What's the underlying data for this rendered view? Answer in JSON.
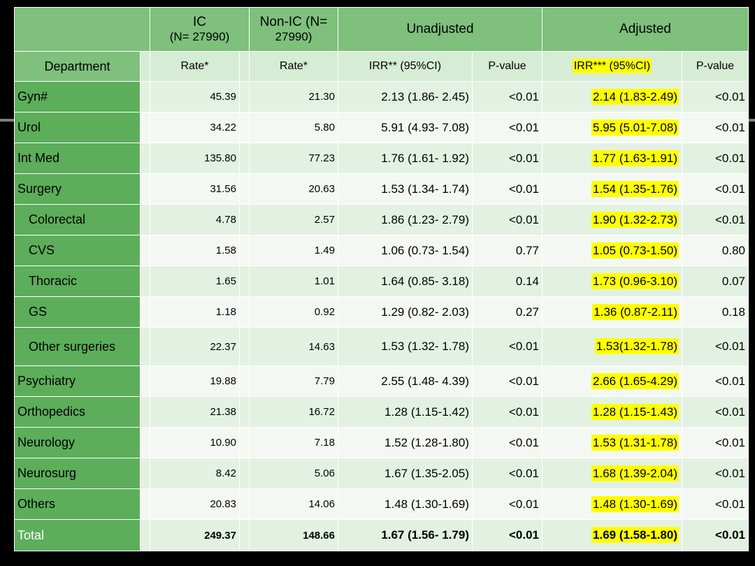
{
  "header": {
    "ic_title": "IC",
    "ic_n": "(N= 27990)",
    "nonic_title": "Non-IC (N=",
    "nonic_n": "27990)",
    "unadjusted": "Unadjusted",
    "adjusted": "Adjusted"
  },
  "subheader": {
    "department": "Department",
    "rate_ic": "Rate*",
    "rate_nonic": "Rate*",
    "irr_unadj": "IRR** (95%CI)",
    "p_unadj": "P-value",
    "irr_adj": "IRR*** (95%CI)",
    "p_adj": "P-value"
  },
  "rows": [
    {
      "dept": "Gyn#",
      "ic": "45.39",
      "nonic": "21.30",
      "irr": "2.13 (1.86- 2.45)",
      "p": "<0.01",
      "adj": "2.14 (1.83-2.49)",
      "padj": "<0.01"
    },
    {
      "dept": "Urol",
      "ic": "34.22",
      "nonic": "5.80",
      "irr": "5.91 (4.93- 7.08)",
      "p": "<0.01",
      "adj": "5.95 (5.01-7.08)",
      "padj": "<0.01"
    },
    {
      "dept": "Int Med",
      "ic": "135.80",
      "nonic": "77.23",
      "irr": "1.76 (1.61- 1.92)",
      "p": "<0.01",
      "adj": "1.77 (1.63-1.91)",
      "padj": "<0.01"
    },
    {
      "dept": "Surgery",
      "ic": "31.56",
      "nonic": "20.63",
      "irr": "1.53 (1.34- 1.74)",
      "p": "<0.01",
      "adj": "1.54 (1.35-1.76)",
      "padj": "<0.01"
    },
    {
      "dept": "Colorectal",
      "ic": "4.78",
      "nonic": "2.57",
      "irr": "1.86 (1.23- 2.79)",
      "p": "<0.01",
      "adj": "1.90 (1.32-2.73)",
      "padj": "<0.01"
    },
    {
      "dept": "CVS",
      "ic": "1.58",
      "nonic": "1.49",
      "irr": "1.06 (0.73- 1.54)",
      "p": "0.77",
      "adj": "1.05 (0.73-1.50)",
      "padj": "0.80"
    },
    {
      "dept": "Thoracic",
      "ic": "1.65",
      "nonic": "1.01",
      "irr": "1.64 (0.85- 3.18)",
      "p": "0.14",
      "adj": "1.73 (0.96-3.10)",
      "padj": "0.07"
    },
    {
      "dept": "GS",
      "ic": "1.18",
      "nonic": "0.92",
      "irr": "1.29 (0.82- 2.03)",
      "p": "0.27",
      "adj": "1.36 (0.87-2.11)",
      "padj": "0.18"
    },
    {
      "dept": "Other surgeries",
      "ic": "22.37",
      "nonic": "14.63",
      "irr": "1.53 (1.32- 1.78)",
      "p": "<0.01",
      "adj": "1.53(1.32-1.78)",
      "padj": "<0.01"
    },
    {
      "dept": "Psychiatry",
      "ic": "19.88",
      "nonic": "7.79",
      "irr": "2.55 (1.48- 4.39)",
      "p": "<0.01",
      "adj": "2.66 (1.65-4.29)",
      "padj": "<0.01"
    },
    {
      "dept": "Orthopedics",
      "ic": "21.38",
      "nonic": "16.72",
      "irr": "1.28 (1.15-1.42)",
      "p": "<0.01",
      "adj": "1.28 (1.15-1.43)",
      "padj": "<0.01"
    },
    {
      "dept": "Neurology",
      "ic": "10.90",
      "nonic": "7.18",
      "irr": "1.52 (1.28-1.80)",
      "p": "<0.01",
      "adj": "1.53 (1.31-1.78)",
      "padj": "<0.01"
    },
    {
      "dept": "Neurosurg",
      "ic": "8.42",
      "nonic": "5.06",
      "irr": "1.67 (1.35-2.05)",
      "p": "<0.01",
      "adj": "1.68 (1.39-2.04)",
      "padj": "<0.01"
    },
    {
      "dept": "Others",
      "ic": "20.83",
      "nonic": "14.06",
      "irr": "1.48 (1.30-1.69)",
      "p": "<0.01",
      "adj": "1.48 (1.30-1.69)",
      "padj": "<0.01"
    },
    {
      "dept": "Total",
      "ic": "249.37",
      "nonic": "148.66",
      "irr": "1.67 (1.56- 1.79)",
      "p": "<0.01",
      "adj": "1.69 (1.58-1.80)",
      "padj": "<0.01"
    }
  ],
  "colors": {
    "header_green": "#7ec07c",
    "dept_green": "#5cae5a",
    "highlight": "#ffff00",
    "background": "#000000"
  }
}
